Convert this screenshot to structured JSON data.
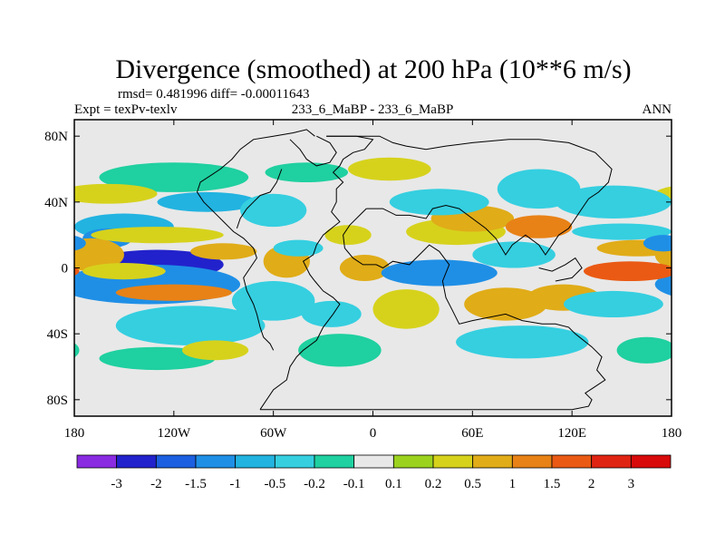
{
  "chart_data": {
    "type": "heatmap",
    "title": "Divergence (smoothed) at 200 hPa (10**6 m/s)",
    "stats_text": "rmsd= 0.481996 diff= -0.00011643",
    "left_label": "Expt = texPv-texlv",
    "center_label": "233_6_MaBP - 233_6_MaBP",
    "right_label": "ANN",
    "xlim": [
      -180,
      180
    ],
    "ylim": [
      -90,
      90
    ],
    "x_ticks": [
      {
        "value": -180,
        "label": "180"
      },
      {
        "value": -120,
        "label": "120W"
      },
      {
        "value": -60,
        "label": "60W"
      },
      {
        "value": 0,
        "label": "0"
      },
      {
        "value": 60,
        "label": "60E"
      },
      {
        "value": 120,
        "label": "120E"
      },
      {
        "value": 180,
        "label": "180"
      }
    ],
    "y_ticks": [
      {
        "value": 80,
        "label": "80N"
      },
      {
        "value": 40,
        "label": "40N"
      },
      {
        "value": 0,
        "label": "0"
      },
      {
        "value": -40,
        "label": "40S"
      },
      {
        "value": -80,
        "label": "80S"
      }
    ],
    "colorbar": {
      "levels": [
        "-3",
        "-2",
        "-1.5",
        "-1",
        "-0.5",
        "-0.2",
        "-0.1",
        "0.1",
        "0.2",
        "0.5",
        "1",
        "1.5",
        "2",
        "3"
      ],
      "colors": [
        "#8a2be2",
        "#2222cc",
        "#1c5fe0",
        "#1f8fe6",
        "#22b3e0",
        "#35cfe0",
        "#1fd0a0",
        "#e8e8e8",
        "#9bd21e",
        "#d6d21c",
        "#e0ac18",
        "#e88216",
        "#ea5a14",
        "#e02414",
        "#d80a0a"
      ]
    },
    "background_color": "#e8e8e8",
    "blobs": [
      {
        "lon": -130,
        "lat": 2,
        "rlon": 40,
        "rlat": 9,
        "value": -2.5
      },
      {
        "lon": -135,
        "lat": -10,
        "rlon": 55,
        "rlat": 12,
        "value": -1.2
      },
      {
        "lon": -150,
        "lat": 25,
        "rlon": 30,
        "rlat": 8,
        "value": -0.6
      },
      {
        "lon": -160,
        "lat": 18,
        "rlon": 15,
        "rlat": 6,
        "value": -1.2
      },
      {
        "lon": -120,
        "lat": 55,
        "rlon": 45,
        "rlat": 9,
        "value": -0.2
      },
      {
        "lon": -100,
        "lat": 40,
        "rlon": 30,
        "rlat": 6,
        "value": -0.6
      },
      {
        "lon": -110,
        "lat": -35,
        "rlon": 45,
        "rlat": 12,
        "value": -0.3
      },
      {
        "lon": -130,
        "lat": -55,
        "rlon": 35,
        "rlat": 7,
        "value": -0.15
      },
      {
        "lon": -170,
        "lat": 8,
        "rlon": 20,
        "rlat": 10,
        "value": 0.8
      },
      {
        "lon": -150,
        "lat": -2,
        "rlon": 25,
        "rlat": 5,
        "value": 0.4
      },
      {
        "lon": -120,
        "lat": -15,
        "rlon": 35,
        "rlat": 5,
        "value": 1.1
      },
      {
        "lon": -130,
        "lat": 20,
        "rlon": 40,
        "rlat": 5,
        "value": 0.3
      },
      {
        "lon": -90,
        "lat": 10,
        "rlon": 20,
        "rlat": 5,
        "value": 0.5
      },
      {
        "lon": -160,
        "lat": 45,
        "rlon": 30,
        "rlat": 6,
        "value": 0.25
      },
      {
        "lon": -95,
        "lat": -50,
        "rlon": 20,
        "rlat": 6,
        "value": 0.2
      },
      {
        "lon": -52,
        "lat": 4,
        "rlon": 14,
        "rlat": 10,
        "value": 0.8
      },
      {
        "lon": -60,
        "lat": 35,
        "rlon": 20,
        "rlat": 10,
        "value": -0.4
      },
      {
        "lon": -60,
        "lat": -20,
        "rlon": 25,
        "rlat": 12,
        "value": -0.5
      },
      {
        "lon": -45,
        "lat": 12,
        "rlon": 15,
        "rlat": 5,
        "value": -0.5
      },
      {
        "lon": -20,
        "lat": -50,
        "rlon": 25,
        "rlat": 10,
        "value": -0.2
      },
      {
        "lon": -25,
        "lat": -28,
        "rlon": 18,
        "rlat": 8,
        "value": -0.5
      },
      {
        "lon": -5,
        "lat": 0,
        "rlon": 15,
        "rlat": 8,
        "value": 0.6
      },
      {
        "lon": -15,
        "lat": 20,
        "rlon": 14,
        "rlat": 6,
        "value": 0.3
      },
      {
        "lon": -40,
        "lat": 58,
        "rlon": 25,
        "rlat": 6,
        "value": -0.15
      },
      {
        "lon": 10,
        "lat": 60,
        "rlon": 25,
        "rlat": 7,
        "value": 0.3
      },
      {
        "lon": 40,
        "lat": -3,
        "rlon": 35,
        "rlat": 8,
        "value": -1.3
      },
      {
        "lon": 50,
        "lat": 22,
        "rlon": 30,
        "rlat": 8,
        "value": 0.25
      },
      {
        "lon": 60,
        "lat": 30,
        "rlon": 25,
        "rlat": 8,
        "value": 0.9
      },
      {
        "lon": 40,
        "lat": 40,
        "rlon": 30,
        "rlat": 8,
        "value": -0.3
      },
      {
        "lon": 20,
        "lat": -25,
        "rlon": 20,
        "rlat": 12,
        "value": 0.4
      },
      {
        "lon": 80,
        "lat": -22,
        "rlon": 25,
        "rlat": 10,
        "value": 0.8
      },
      {
        "lon": 85,
        "lat": 8,
        "rlon": 25,
        "rlat": 8,
        "value": -0.5
      },
      {
        "lon": 100,
        "lat": 48,
        "rlon": 25,
        "rlat": 12,
        "value": -0.4
      },
      {
        "lon": 100,
        "lat": 25,
        "rlon": 20,
        "rlat": 7,
        "value": 1.0
      },
      {
        "lon": 115,
        "lat": -18,
        "rlon": 22,
        "rlat": 8,
        "value": 0.6
      },
      {
        "lon": 90,
        "lat": -45,
        "rlon": 40,
        "rlat": 10,
        "value": -0.3
      },
      {
        "lon": 155,
        "lat": -2,
        "rlon": 28,
        "rlat": 6,
        "value": 1.6
      },
      {
        "lon": 160,
        "lat": 12,
        "rlon": 25,
        "rlat": 5,
        "value": 0.5
      },
      {
        "lon": 145,
        "lat": 40,
        "rlon": 35,
        "rlat": 10,
        "value": -0.5
      },
      {
        "lon": 150,
        "lat": 22,
        "rlon": 30,
        "rlat": 5,
        "value": -0.3
      },
      {
        "lon": 145,
        "lat": -22,
        "rlon": 30,
        "rlat": 8,
        "value": -0.3
      },
      {
        "lon": 165,
        "lat": -50,
        "rlon": 18,
        "rlat": 8,
        "value": -0.2
      },
      {
        "lon": 175,
        "lat": 15,
        "rlon": 12,
        "rlat": 5,
        "value": -1.2
      }
    ],
    "coastline": [
      [
        [
          -28,
          80
        ],
        [
          -10,
          80
        ],
        [
          0,
          78
        ],
        [
          -5,
          72
        ],
        [
          -12,
          70
        ],
        [
          -18,
          66
        ],
        [
          -20,
          62
        ],
        [
          -24,
          58
        ],
        [
          -18,
          52
        ],
        [
          -22,
          48
        ],
        [
          -22,
          40
        ],
        [
          -25,
          34
        ],
        [
          -20,
          28
        ],
        [
          -25,
          24
        ],
        [
          -30,
          20
        ],
        [
          -34,
          14
        ],
        [
          -36,
          8
        ],
        [
          -42,
          4
        ],
        [
          -38,
          -4
        ],
        [
          -35,
          -8
        ],
        [
          -30,
          -14
        ],
        [
          -24,
          -18
        ],
        [
          -20,
          -22
        ],
        [
          -24,
          -28
        ],
        [
          -30,
          -36
        ],
        [
          -34,
          -44
        ],
        [
          -42,
          -50
        ],
        [
          -46,
          -54
        ],
        [
          -50,
          -60
        ],
        [
          -52,
          -68
        ],
        [
          -60,
          -74
        ],
        [
          -68,
          -86
        ]
      ],
      [
        [
          -68,
          -86
        ],
        [
          -30,
          -86
        ],
        [
          0,
          -86
        ],
        [
          40,
          -86
        ],
        [
          80,
          -86
        ],
        [
          120,
          -86
        ],
        [
          130,
          -84
        ],
        [
          132,
          -80
        ],
        [
          128,
          -76
        ],
        [
          134,
          -72
        ],
        [
          140,
          -68
        ],
        [
          135,
          -62
        ],
        [
          138,
          -54
        ],
        [
          132,
          -48
        ],
        [
          122,
          -40
        ],
        [
          118,
          -36
        ],
        [
          110,
          -34
        ],
        [
          102,
          -34
        ],
        [
          90,
          -32
        ],
        [
          80,
          -28
        ],
        [
          70,
          -30
        ],
        [
          60,
          -32
        ],
        [
          52,
          -34
        ],
        [
          48,
          -26
        ],
        [
          44,
          -18
        ],
        [
          42,
          -8
        ],
        [
          46,
          2
        ],
        [
          40,
          10
        ],
        [
          34,
          14
        ],
        [
          28,
          8
        ],
        [
          22,
          2
        ],
        [
          12,
          4
        ],
        [
          6,
          0
        ],
        [
          2,
          2
        ],
        [
          -6,
          2
        ],
        [
          -12,
          6
        ],
        [
          -17,
          12
        ],
        [
          -18,
          20
        ],
        [
          -14,
          26
        ],
        [
          -8,
          32
        ],
        [
          -4,
          36
        ]
      ],
      [
        [
          -4,
          36
        ],
        [
          6,
          36
        ],
        [
          14,
          32
        ],
        [
          22,
          32
        ],
        [
          32,
          30
        ],
        [
          36,
          36
        ],
        [
          44,
          38
        ],
        [
          52,
          36
        ],
        [
          60,
          30
        ],
        [
          68,
          24
        ],
        [
          74,
          18
        ],
        [
          80,
          8
        ],
        [
          84,
          14
        ],
        [
          92,
          20
        ],
        [
          100,
          14
        ],
        [
          104,
          8
        ],
        [
          108,
          14
        ],
        [
          112,
          20
        ],
        [
          118,
          24
        ],
        [
          122,
          30
        ],
        [
          126,
          36
        ],
        [
          130,
          42
        ],
        [
          136,
          46
        ],
        [
          142,
          52
        ],
        [
          144,
          60
        ],
        [
          140,
          64
        ],
        [
          134,
          70
        ],
        [
          118,
          76
        ],
        [
          100,
          78
        ],
        [
          82,
          78
        ],
        [
          60,
          76
        ],
        [
          44,
          74
        ],
        [
          32,
          72
        ],
        [
          20,
          74
        ],
        [
          12,
          76
        ],
        [
          4,
          80
        ],
        [
          -8,
          80
        ],
        [
          -28,
          80
        ]
      ],
      [
        [
          -35,
          80
        ],
        [
          -40,
          84
        ],
        [
          -48,
          82
        ],
        [
          -60,
          80
        ],
        [
          -72,
          78
        ],
        [
          -80,
          72
        ],
        [
          -85,
          66
        ],
        [
          -92,
          60
        ],
        [
          -98,
          56
        ],
        [
          -104,
          52
        ],
        [
          -106,
          46
        ],
        [
          -102,
          40
        ],
        [
          -96,
          34
        ],
        [
          -90,
          28
        ],
        [
          -84,
          22
        ],
        [
          -78,
          18
        ],
        [
          -72,
          12
        ],
        [
          -70,
          6
        ],
        [
          -74,
          0
        ],
        [
          -78,
          -6
        ],
        [
          -76,
          -14
        ],
        [
          -72,
          -22
        ],
        [
          -70,
          -28
        ],
        [
          -68,
          -36
        ],
        [
          -66,
          -42
        ],
        [
          -62,
          -46
        ],
        [
          -60,
          -50
        ]
      ],
      [
        [
          -55,
          60
        ],
        [
          -58,
          52
        ],
        [
          -62,
          46
        ],
        [
          -68,
          44
        ],
        [
          -72,
          40
        ],
        [
          -76,
          36
        ],
        [
          -80,
          30
        ],
        [
          -82,
          24
        ]
      ],
      [
        [
          -50,
          78
        ],
        [
          -44,
          72
        ],
        [
          -40,
          66
        ],
        [
          -34,
          62
        ],
        [
          -26,
          64
        ],
        [
          -22,
          70
        ],
        [
          -26,
          76
        ],
        [
          -34,
          80
        ]
      ],
      [
        [
          100,
          0
        ],
        [
          108,
          -2
        ],
        [
          116,
          2
        ],
        [
          122,
          6
        ],
        [
          126,
          0
        ],
        [
          120,
          -6
        ],
        [
          110,
          -8
        ]
      ]
    ]
  }
}
